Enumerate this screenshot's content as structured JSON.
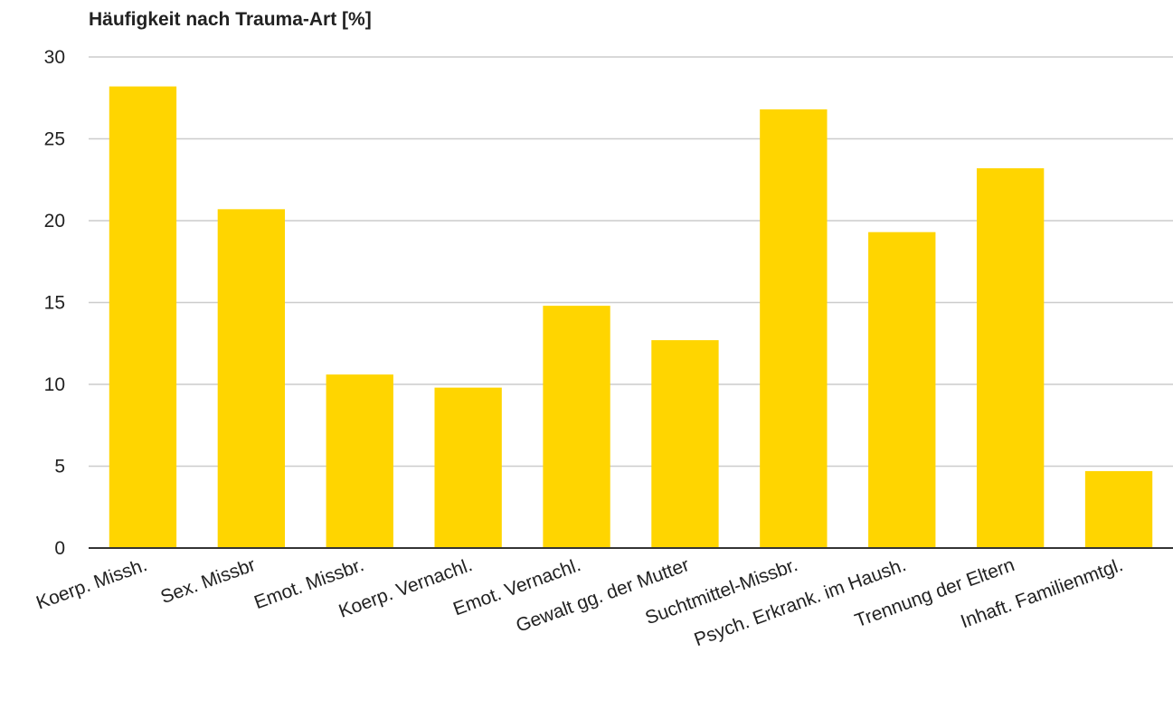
{
  "chart_data": {
    "type": "bar",
    "title": "Häufigkeit nach Trauma-Art [%]",
    "xlabel": "",
    "ylabel": "",
    "categories": [
      "Koerp. Missh.",
      "Sex. Missbr",
      "Emot. Missbr.",
      "Koerp. Vernachl.",
      "Emot. Vernachl.",
      "Gewalt gg. der Mutter",
      "Suchtmittel-Missbr.",
      "Psych. Erkrank. im Haush.",
      "Trennung der Eltern",
      "Inhaft. Familienmtgl."
    ],
    "values": [
      28.2,
      20.7,
      10.6,
      9.8,
      14.8,
      12.7,
      26.8,
      19.3,
      23.2,
      4.7
    ],
    "ylim": [
      0,
      30
    ],
    "yticks": [
      0,
      5,
      10,
      15,
      20,
      25,
      30
    ],
    "grid": true,
    "legend": "none",
    "bar_color": "#FFD500",
    "grid_color": "#cccccc",
    "axis_color": "#333333"
  }
}
